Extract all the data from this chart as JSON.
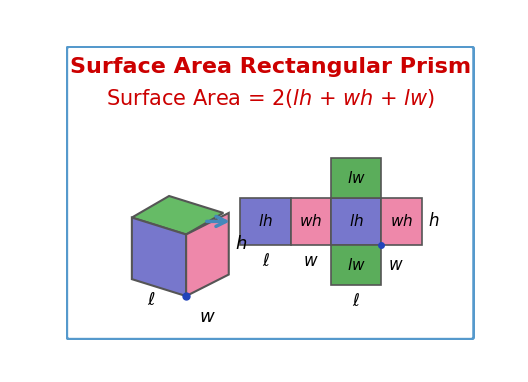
{
  "title": "Surface Area Rectangular Prism",
  "title_color": "#CC0000",
  "formula_color": "#CC0000",
  "bg_color": "#FFFFFF",
  "border_color": "#5599CC",
  "cube_top_color": "#66BB66",
  "cube_left_color": "#7777CC",
  "cube_right_color": "#EE88AA",
  "net_blue_color": "#7777CC",
  "net_pink_color": "#EE88AA",
  "net_green_color": "#5BAD5B",
  "label_color": "#000000",
  "arrow_color": "#4488BB",
  "dot_color": "#2244BB",
  "edge_color": "#555555"
}
